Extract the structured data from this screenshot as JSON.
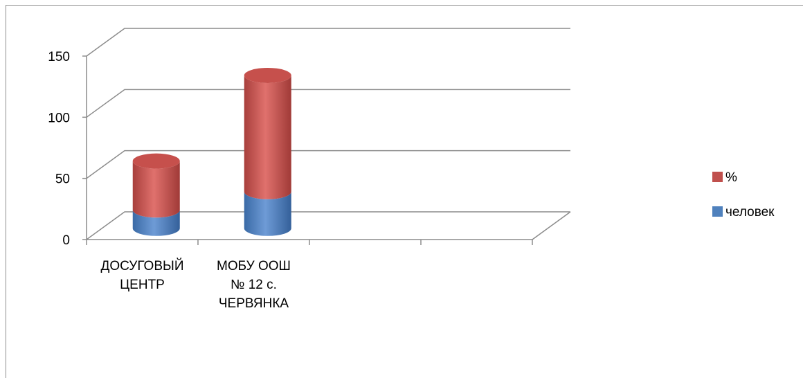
{
  "chart_data": {
    "type": "bar",
    "stacked": true,
    "three_d": true,
    "title": "",
    "xlabel": "",
    "ylabel": "",
    "categories": [
      [
        "ДОСУГОВЫЙ",
        "ЦЕНТР"
      ],
      [
        "МОБУ ООШ",
        "№ 12 с.",
        "ЧЕРВЯНКА"
      ],
      [
        ""
      ],
      [
        ""
      ]
    ],
    "series": [
      {
        "name": "человек",
        "color": "#4f81bd",
        "values": [
          15,
          30,
          null,
          null
        ]
      },
      {
        "name": "%",
        "color": "#c0504d",
        "values": [
          40,
          95,
          null,
          null
        ]
      }
    ],
    "ylim": [
      0,
      150
    ],
    "yticks": [
      0,
      50,
      100,
      150
    ],
    "grid": true,
    "legend_position": "right"
  }
}
